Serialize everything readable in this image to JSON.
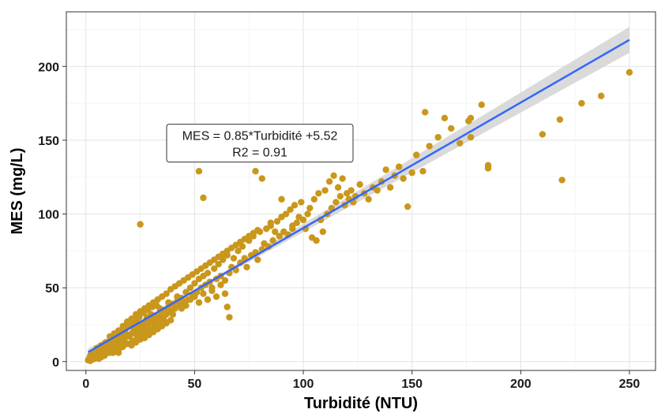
{
  "chart_data": {
    "type": "scatter",
    "title": "",
    "xlabel": "Turbidité (NTU)",
    "ylabel": "MES (mg/L)",
    "xlim": [
      -9,
      262
    ],
    "ylim": [
      -6,
      237
    ],
    "x_ticks": [
      0,
      50,
      100,
      150,
      200,
      250
    ],
    "y_ticks": [
      0,
      50,
      100,
      150,
      200
    ],
    "grid": true,
    "point_color": "#C9971C",
    "line_color": "#3366FF",
    "ribbon_color": "#D3D3D3",
    "regression": {
      "slope": 0.85,
      "intercept": 5.52,
      "x_range": [
        1,
        250
      ],
      "r2": 0.91
    },
    "annotation": {
      "line1": "MES = 0.85*Turbidité +5.52",
      "line2": "R2 = 0.91",
      "x": 80,
      "y": 148
    },
    "points": [
      [
        1,
        1
      ],
      [
        1.5,
        2
      ],
      [
        2,
        0.5
      ],
      [
        2.5,
        3
      ],
      [
        3,
        1.5
      ],
      [
        3.5,
        4
      ],
      [
        4,
        2
      ],
      [
        4.5,
        5
      ],
      [
        5,
        3
      ],
      [
        5.5,
        6
      ],
      [
        6,
        4
      ],
      [
        6.5,
        7
      ],
      [
        7,
        5
      ],
      [
        7.5,
        9
      ],
      [
        8,
        6
      ],
      [
        8.5,
        4
      ],
      [
        9,
        8
      ],
      [
        9.5,
        10
      ],
      [
        10,
        7
      ],
      [
        10.5,
        12
      ],
      [
        11,
        9
      ],
      [
        11.5,
        14
      ],
      [
        12,
        10
      ],
      [
        12.5,
        6
      ],
      [
        13,
        12
      ],
      [
        13.5,
        16
      ],
      [
        14,
        11
      ],
      [
        14.5,
        18
      ],
      [
        15,
        13
      ],
      [
        15.5,
        9
      ],
      [
        16,
        15
      ],
      [
        16.5,
        20
      ],
      [
        17,
        14
      ],
      [
        17.5,
        22
      ],
      [
        18,
        16
      ],
      [
        18.5,
        12
      ],
      [
        19,
        18
      ],
      [
        19.5,
        24
      ],
      [
        20,
        17
      ],
      [
        20.5,
        26
      ],
      [
        21,
        19
      ],
      [
        21.5,
        14
      ],
      [
        22,
        21
      ],
      [
        22.5,
        28
      ],
      [
        23,
        20
      ],
      [
        23.5,
        17
      ],
      [
        24,
        23
      ],
      [
        24.5,
        30
      ],
      [
        25,
        22
      ],
      [
        25.5,
        19
      ],
      [
        26,
        25
      ],
      [
        26.5,
        33
      ],
      [
        27,
        24
      ],
      [
        27.5,
        21
      ],
      [
        28,
        27
      ],
      [
        28.5,
        35
      ],
      [
        29,
        26
      ],
      [
        29.5,
        22
      ],
      [
        30,
        28
      ],
      [
        30.5,
        37
      ],
      [
        31,
        30
      ],
      [
        31.5,
        25
      ],
      [
        32,
        29
      ],
      [
        32.5,
        38
      ],
      [
        33,
        31
      ],
      [
        33.5,
        27
      ],
      [
        34,
        33
      ],
      [
        35,
        30
      ],
      [
        36,
        35
      ],
      [
        37,
        32
      ],
      [
        38,
        37
      ],
      [
        39,
        34
      ],
      [
        40,
        39
      ],
      [
        41,
        36
      ],
      [
        42,
        41
      ],
      [
        43,
        38
      ],
      [
        44,
        43
      ],
      [
        45,
        40
      ],
      [
        46,
        47
      ],
      [
        47,
        42
      ],
      [
        48,
        50
      ],
      [
        49,
        45
      ],
      [
        50,
        53
      ],
      [
        51,
        47
      ],
      [
        52,
        56
      ],
      [
        53,
        50
      ],
      [
        54,
        58
      ],
      [
        55,
        52
      ],
      [
        56,
        60
      ],
      [
        57,
        54
      ],
      [
        58,
        48
      ],
      [
        59,
        63
      ],
      [
        60,
        56
      ],
      [
        61,
        66
      ],
      [
        62,
        58
      ],
      [
        63,
        69
      ],
      [
        64,
        55
      ],
      [
        65,
        72
      ],
      [
        66,
        60
      ],
      [
        67,
        64
      ],
      [
        68,
        70
      ],
      [
        69,
        62
      ],
      [
        70,
        75
      ],
      [
        71,
        67
      ],
      [
        72,
        78
      ],
      [
        73,
        70
      ],
      [
        74,
        64
      ],
      [
        75,
        82
      ],
      [
        76,
        72
      ],
      [
        77,
        85
      ],
      [
        78,
        74
      ],
      [
        79,
        69
      ],
      [
        80,
        88
      ],
      [
        81,
        76
      ],
      [
        82,
        80
      ],
      [
        83,
        90
      ],
      [
        84,
        78
      ],
      [
        85,
        92
      ],
      [
        86,
        82
      ],
      [
        87,
        88
      ],
      [
        88,
        95
      ],
      [
        89,
        85
      ],
      [
        90,
        98
      ],
      [
        91,
        88
      ],
      [
        92,
        100
      ],
      [
        93,
        86
      ],
      [
        94,
        103
      ],
      [
        95,
        92
      ],
      [
        96,
        106
      ],
      [
        97,
        94
      ],
      [
        98,
        98
      ],
      [
        99,
        108
      ],
      [
        100,
        96
      ],
      [
        101,
        90
      ],
      [
        102,
        100
      ],
      [
        103,
        104
      ],
      [
        104,
        84
      ],
      [
        105,
        110
      ],
      [
        106,
        82
      ],
      [
        107,
        114
      ],
      [
        108,
        96
      ],
      [
        109,
        88
      ],
      [
        110,
        116
      ],
      [
        111,
        100
      ],
      [
        112,
        122
      ],
      [
        113,
        104
      ],
      [
        114,
        126
      ],
      [
        115,
        108
      ],
      [
        116,
        118
      ],
      [
        117,
        112
      ],
      [
        118,
        124
      ],
      [
        119,
        106
      ],
      [
        120,
        114
      ],
      [
        121,
        110
      ],
      [
        122,
        116
      ],
      [
        123,
        108
      ],
      [
        124,
        112
      ],
      [
        126,
        120
      ],
      [
        128,
        114
      ],
      [
        130,
        110
      ],
      [
        132,
        118
      ],
      [
        134,
        116
      ],
      [
        136,
        122
      ],
      [
        138,
        130
      ],
      [
        140,
        118
      ],
      [
        142,
        126
      ],
      [
        144,
        132
      ],
      [
        146,
        124
      ],
      [
        148,
        105
      ],
      [
        150,
        128
      ],
      [
        5,
        7
      ],
      [
        8,
        10
      ],
      [
        10,
        13
      ],
      [
        12,
        15
      ],
      [
        14,
        9
      ],
      [
        16,
        18
      ],
      [
        18,
        20
      ],
      [
        20,
        12
      ],
      [
        22,
        24
      ],
      [
        24,
        26
      ],
      [
        26,
        18
      ],
      [
        28,
        30
      ],
      [
        30,
        32
      ],
      [
        32,
        24
      ],
      [
        34,
        36
      ],
      [
        36,
        28
      ],
      [
        38,
        40
      ],
      [
        40,
        32
      ],
      [
        42,
        44
      ],
      [
        44,
        36
      ],
      [
        46,
        38
      ],
      [
        48,
        42
      ],
      [
        50,
        44
      ],
      [
        52,
        40
      ],
      [
        54,
        46
      ],
      [
        56,
        42
      ],
      [
        58,
        50
      ],
      [
        60,
        44
      ],
      [
        62,
        52
      ],
      [
        64,
        46
      ],
      [
        3,
        2
      ],
      [
        4,
        6
      ],
      [
        6,
        2
      ],
      [
        7,
        3
      ],
      [
        9,
        5
      ],
      [
        11,
        6
      ],
      [
        13,
        8
      ],
      [
        15,
        6
      ],
      [
        17,
        10
      ],
      [
        19,
        12
      ],
      [
        21,
        11
      ],
      [
        23,
        13
      ],
      [
        25,
        15
      ],
      [
        27,
        16
      ],
      [
        29,
        18
      ],
      [
        31,
        20
      ],
      [
        33,
        22
      ],
      [
        35,
        24
      ],
      [
        37,
        26
      ],
      [
        39,
        28
      ],
      [
        2,
        4
      ],
      [
        3,
        6
      ],
      [
        5,
        9
      ],
      [
        7,
        11
      ],
      [
        9,
        13
      ],
      [
        11,
        17
      ],
      [
        13,
        19
      ],
      [
        15,
        21
      ],
      [
        17,
        24
      ],
      [
        19,
        27
      ],
      [
        21,
        29
      ],
      [
        23,
        32
      ],
      [
        25,
        34
      ],
      [
        27,
        36
      ],
      [
        29,
        38
      ],
      [
        31,
        40
      ],
      [
        33,
        42
      ],
      [
        35,
        44
      ],
      [
        37,
        46
      ],
      [
        39,
        49
      ],
      [
        41,
        51
      ],
      [
        43,
        53
      ],
      [
        45,
        55
      ],
      [
        47,
        57
      ],
      [
        49,
        59
      ],
      [
        51,
        61
      ],
      [
        53,
        63
      ],
      [
        55,
        65
      ],
      [
        57,
        67
      ],
      [
        59,
        69
      ],
      [
        61,
        71
      ],
      [
        63,
        73
      ],
      [
        65,
        75
      ],
      [
        67,
        77
      ],
      [
        69,
        79
      ],
      [
        71,
        81
      ],
      [
        73,
        83
      ],
      [
        75,
        85
      ],
      [
        77,
        87
      ],
      [
        79,
        89
      ],
      [
        25,
        93
      ],
      [
        52,
        129
      ],
      [
        54,
        111
      ],
      [
        66,
        30
      ],
      [
        65,
        37
      ],
      [
        78,
        129
      ],
      [
        81,
        124
      ],
      [
        90,
        110
      ],
      [
        85,
        94
      ],
      [
        95,
        90
      ],
      [
        155,
        129
      ],
      [
        156,
        169
      ],
      [
        162,
        152
      ],
      [
        165,
        165
      ],
      [
        176,
        163
      ],
      [
        177,
        165
      ],
      [
        177,
        152
      ],
      [
        182,
        174
      ],
      [
        185,
        133
      ],
      [
        185,
        131
      ],
      [
        210,
        154
      ],
      [
        218,
        164
      ],
      [
        219,
        123
      ],
      [
        228,
        175
      ],
      [
        237,
        180
      ],
      [
        250,
        196
      ],
      [
        152,
        140
      ],
      [
        158,
        146
      ],
      [
        168,
        158
      ],
      [
        172,
        148
      ]
    ]
  }
}
